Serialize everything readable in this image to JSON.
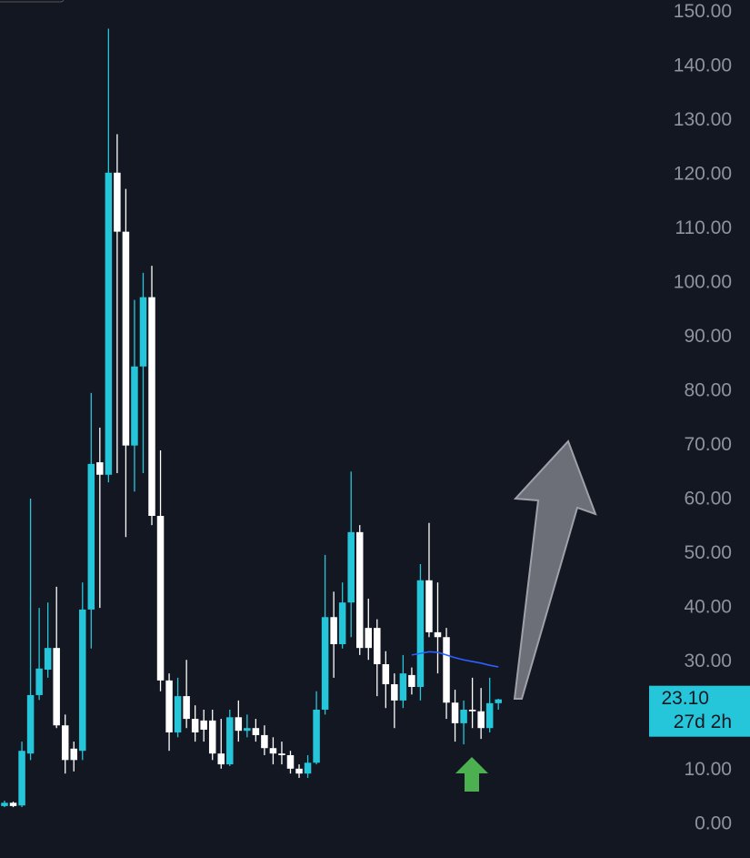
{
  "chart_data": {
    "type": "candlestick",
    "open": [
      3.4,
      4.0,
      3.5,
      13.1,
      23.9,
      28.6,
      32.6,
      18.3,
      14.0,
      13.6,
      39.7,
      66.9,
      64.6,
      120.4,
      109.5,
      70.0,
      84.6,
      97.4,
      57.0,
      26.6,
      17.0,
      23.7,
      19.5,
      19.2,
      19.2,
      13.1,
      11.1,
      19.8,
      17.3,
      17.8,
      16.5,
      14.1,
      13.1,
      12.8,
      10.3,
      9.4,
      11.4,
      21.2,
      38.3,
      33.3,
      41.0,
      54.0,
      36.3,
      36.3,
      29.6,
      25.9,
      22.9,
      27.6,
      25.4,
      45.1,
      35.5,
      34.6,
      22.5,
      18.7,
      21.2,
      20.9,
      17.8,
      22.4
    ],
    "high": [
      4.4,
      4.2,
      15.3,
      60.2,
      40.0,
      41.0,
      43.9,
      20.3,
      15.3,
      44.7,
      79.7,
      73.3,
      147.0,
      127.5,
      117.4,
      96.9,
      101.9,
      103.2,
      69.1,
      27.9,
      27.1,
      30.4,
      22.0,
      21.2,
      21.2,
      19.5,
      21.2,
      22.9,
      20.3,
      19.5,
      18.3,
      16.1,
      15.3,
      13.6,
      11.1,
      12.8,
      24.6,
      49.8,
      43.0,
      44.7,
      65.2,
      55.3,
      41.7,
      37.9,
      32.0,
      27.9,
      31.3,
      29.0,
      48.1,
      55.7,
      44.7,
      36.3,
      24.9,
      22.9,
      27.1,
      25.2,
      27.1,
      23.2
    ],
    "low": [
      3.2,
      3.2,
      3.2,
      11.9,
      23.0,
      27.1,
      17.8,
      9.4,
      9.8,
      11.9,
      32.5,
      40.0,
      63.2,
      64.9,
      53.1,
      61.5,
      64.9,
      55.3,
      24.6,
      13.6,
      16.1,
      17.8,
      15.3,
      15.3,
      11.9,
      10.3,
      10.8,
      15.3,
      16.1,
      15.3,
      12.8,
      11.1,
      11.1,
      9.4,
      8.6,
      8.6,
      11.1,
      20.3,
      27.1,
      32.5,
      34.6,
      31.3,
      30.4,
      23.7,
      21.5,
      17.8,
      21.5,
      24.0,
      22.9,
      34.6,
      27.9,
      19.5,
      15.3,
      14.8,
      17.8,
      15.8,
      17.0,
      21.2
    ],
    "close": [
      4.0,
      3.4,
      13.6,
      23.9,
      28.8,
      32.6,
      18.3,
      11.9,
      11.9,
      39.7,
      66.6,
      64.6,
      120.4,
      109.5,
      70.0,
      84.6,
      97.4,
      57.0,
      26.6,
      17.0,
      23.7,
      19.5,
      17.0,
      17.5,
      13.1,
      11.1,
      19.8,
      17.3,
      17.8,
      16.5,
      14.1,
      13.1,
      12.8,
      10.3,
      9.4,
      11.4,
      21.2,
      38.3,
      33.3,
      41.0,
      54.0,
      32.6,
      32.6,
      29.6,
      25.9,
      22.9,
      27.9,
      25.4,
      45.1,
      35.5,
      34.6,
      22.5,
      18.7,
      21.2,
      20.9,
      17.8,
      22.4,
      23.1
    ],
    "ma": [
      null,
      null,
      null,
      null,
      null,
      null,
      null,
      null,
      null,
      null,
      null,
      null,
      null,
      null,
      null,
      null,
      null,
      null,
      null,
      null,
      null,
      null,
      null,
      null,
      null,
      null,
      null,
      null,
      null,
      null,
      null,
      null,
      null,
      null,
      null,
      null,
      null,
      null,
      null,
      null,
      null,
      null,
      null,
      null,
      null,
      null,
      null,
      31.3,
      31.6,
      31.9,
      31.8,
      31.3,
      30.8,
      30.4,
      30.1,
      29.8,
      29.4,
      29.1
    ],
    "up_color": "#26c6da",
    "down_color": "#ffffff",
    "ma_color": "#2962ff",
    "ylim": [
      -6.2,
      152.3
    ],
    "yticks": [
      {
        "value": 0,
        "label": "0.00"
      },
      {
        "value": 10,
        "label": "10.00"
      },
      {
        "value": 20,
        "label": "20.00"
      },
      {
        "value": 30,
        "label": "30.00"
      },
      {
        "value": 40,
        "label": "40.00"
      },
      {
        "value": 50,
        "label": "50.00"
      },
      {
        "value": 60,
        "label": "60.00"
      },
      {
        "value": 70,
        "label": "70.00"
      },
      {
        "value": 80,
        "label": "80.00"
      },
      {
        "value": 90,
        "label": "90.00"
      },
      {
        "value": 100,
        "label": "100.00"
      },
      {
        "value": 110,
        "label": "110.00"
      },
      {
        "value": 120,
        "label": "120.00"
      },
      {
        "value": 130,
        "label": "130.00"
      },
      {
        "value": 140,
        "label": "140.00"
      },
      {
        "value": 150,
        "label": "150.00"
      }
    ],
    "last_price": {
      "value": 23.1,
      "label": "23.10"
    },
    "countdown": "27d 2h"
  }
}
